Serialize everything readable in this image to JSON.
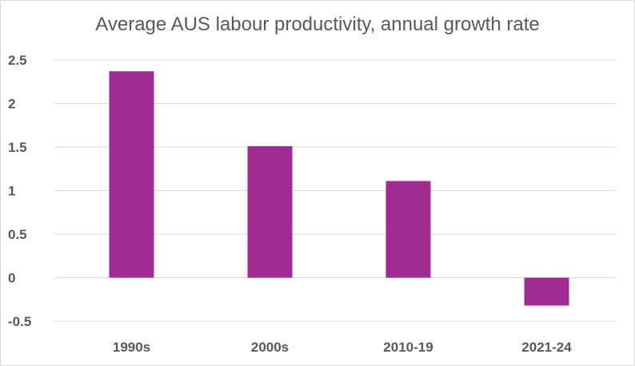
{
  "chart_data": {
    "type": "bar",
    "title": "Average AUS labour productivity, annual growth rate",
    "categories": [
      "1990s",
      "2000s",
      "2010-19",
      "2021-24"
    ],
    "values": [
      2.37,
      1.51,
      1.11,
      -0.32
    ],
    "xlabel": "",
    "ylabel": "",
    "ylim": [
      -0.5,
      2.5
    ],
    "yticks": [
      "2.5",
      "2",
      "1.5",
      "1",
      "0.5",
      "0",
      "-0.5"
    ],
    "grid": true,
    "legend": "none",
    "bar_color": "#A02B93",
    "grid_color": "#d9d9d9",
    "text_color": "#595959"
  }
}
